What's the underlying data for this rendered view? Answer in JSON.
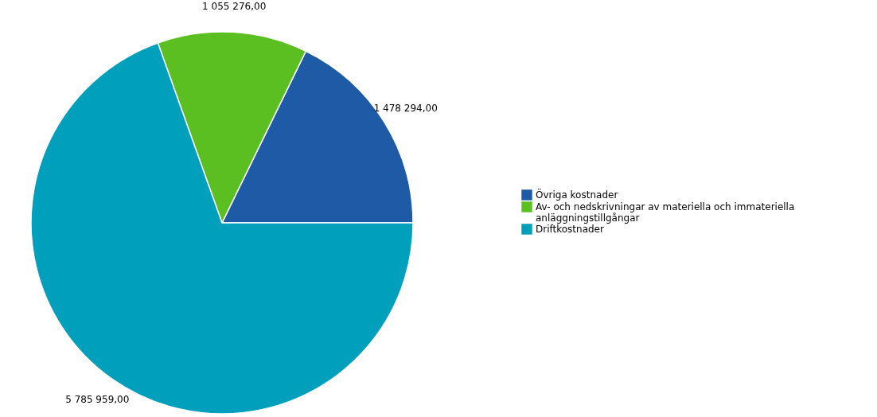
{
  "chart_data": {
    "type": "pie",
    "categories": [
      "Övriga kostnader",
      "Av- och nedskrivningar av materiella och immateriella anläggningstillgångar",
      "Driftkostnader"
    ],
    "values": [
      1478294,
      1055276,
      5785959
    ],
    "value_labels": [
      "1 478 294,00",
      "1 055 276,00",
      "5 785 959,00"
    ],
    "colors": [
      "#1f5aa6",
      "#5bbf21",
      "#00a0bc"
    ],
    "legend": "right"
  }
}
